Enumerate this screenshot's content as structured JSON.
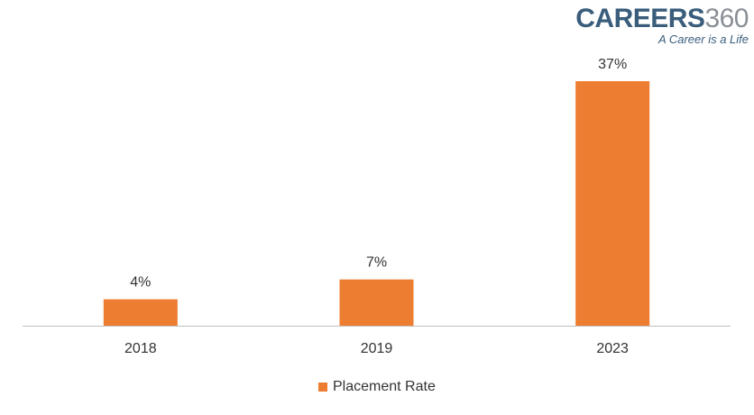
{
  "logo": {
    "word": "CAREERS",
    "number": "360",
    "tagline": "A Career is a Life"
  },
  "colors": {
    "bar": "#ED7D31",
    "axis": "#BFBFBF",
    "text": "#333333"
  },
  "chart_data": {
    "type": "bar",
    "categories": [
      "2018",
      "2019",
      "2023"
    ],
    "series": [
      {
        "name": "Placement Rate",
        "values": [
          4,
          7,
          37
        ],
        "data_labels": [
          "4%",
          "7%",
          "37%"
        ]
      }
    ],
    "title": "",
    "xlabel": "",
    "ylabel": "",
    "ylim": [
      0,
      40
    ],
    "grid": false,
    "legend_position": "bottom"
  }
}
